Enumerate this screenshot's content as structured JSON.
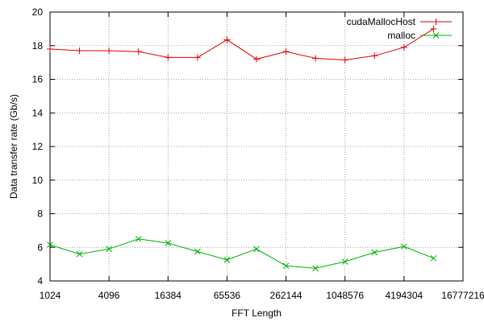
{
  "chart_data": {
    "type": "line",
    "xlabel": "FFT Length",
    "ylabel": "Data transfer rate (Gb/s)",
    "xscale": "log2",
    "xlim": [
      1024,
      16777216
    ],
    "ylim": [
      4,
      20
    ],
    "x_ticks": [
      1024,
      4096,
      16384,
      65536,
      262144,
      1048576,
      4194304,
      16777216
    ],
    "x_tick_labels": [
      "1024",
      "4096",
      "16384",
      "65536",
      "262144",
      "1048576",
      "4194304",
      "16777216"
    ],
    "y_ticks": [
      4,
      6,
      8,
      10,
      12,
      14,
      16,
      18,
      20
    ],
    "y_tick_labels": [
      "4",
      "6",
      "8",
      "10",
      "12",
      "14",
      "16",
      "18",
      "20"
    ],
    "grid": true,
    "legend_position": "top-right",
    "series": [
      {
        "name": "cudaMallocHost",
        "color": "#e00000",
        "marker": "plus",
        "x": [
          1024,
          2048,
          4096,
          8192,
          16384,
          32768,
          65536,
          131072,
          262144,
          524288,
          1048576,
          2097152,
          4194304,
          8388608
        ],
        "y": [
          17.8,
          17.7,
          17.7,
          17.65,
          17.3,
          17.3,
          18.35,
          17.2,
          17.65,
          17.25,
          17.15,
          17.4,
          17.9,
          19.0
        ]
      },
      {
        "name": "malloc",
        "color": "#00b000",
        "marker": "cross",
        "x": [
          1024,
          2048,
          4096,
          8192,
          16384,
          32768,
          65536,
          131072,
          262144,
          524288,
          1048576,
          2097152,
          4194304,
          8388608
        ],
        "y": [
          6.15,
          5.6,
          5.9,
          6.5,
          6.25,
          5.75,
          5.25,
          5.9,
          4.9,
          4.75,
          5.15,
          5.7,
          6.05,
          5.35
        ]
      }
    ]
  }
}
